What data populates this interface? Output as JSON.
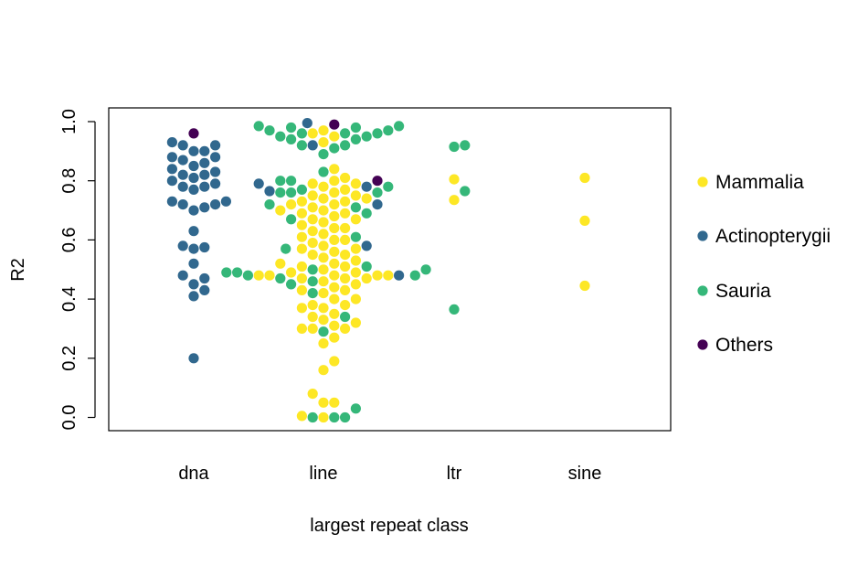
{
  "chart_data": {
    "type": "scatter",
    "subtype": "beeswarm",
    "xlabel": "largest repeat class",
    "ylabel": "R2",
    "categories": [
      "dna",
      "line",
      "ltr",
      "sine"
    ],
    "ylim": [
      -0.05,
      1.05
    ],
    "yticks": [
      "0.0",
      "0.2",
      "0.4",
      "0.6",
      "0.8",
      "1.0"
    ],
    "grid": false,
    "legend_position": "right",
    "series": [
      {
        "name": "Mammalia",
        "color": "#FDE725",
        "points": [
          {
            "x": "line",
            "y": 0.0
          },
          {
            "x": "line",
            "y": 0.005
          },
          {
            "x": "line",
            "y": 0.05
          },
          {
            "x": "line",
            "y": 0.05
          },
          {
            "x": "line",
            "y": 0.08
          },
          {
            "x": "line",
            "y": 0.16
          },
          {
            "x": "line",
            "y": 0.19
          },
          {
            "x": "line",
            "y": 0.25
          },
          {
            "x": "line",
            "y": 0.27
          },
          {
            "x": "line",
            "y": 0.3
          },
          {
            "x": "line",
            "y": 0.3
          },
          {
            "x": "line",
            "y": 0.3
          },
          {
            "x": "line",
            "y": 0.31
          },
          {
            "x": "line",
            "y": 0.32
          },
          {
            "x": "line",
            "y": 0.33
          },
          {
            "x": "line",
            "y": 0.34
          },
          {
            "x": "line",
            "y": 0.35
          },
          {
            "x": "line",
            "y": 0.37
          },
          {
            "x": "line",
            "y": 0.37
          },
          {
            "x": "line",
            "y": 0.38
          },
          {
            "x": "line",
            "y": 0.38
          },
          {
            "x": "line",
            "y": 0.4
          },
          {
            "x": "line",
            "y": 0.4
          },
          {
            "x": "line",
            "y": 0.42
          },
          {
            "x": "line",
            "y": 0.43
          },
          {
            "x": "line",
            "y": 0.43
          },
          {
            "x": "line",
            "y": 0.44
          },
          {
            "x": "line",
            "y": 0.45
          },
          {
            "x": "line",
            "y": 0.46
          },
          {
            "x": "line",
            "y": 0.47
          },
          {
            "x": "line",
            "y": 0.47
          },
          {
            "x": "line",
            "y": 0.47
          },
          {
            "x": "line",
            "y": 0.48
          },
          {
            "x": "line",
            "y": 0.48
          },
          {
            "x": "line",
            "y": 0.48
          },
          {
            "x": "line",
            "y": 0.48
          },
          {
            "x": "line",
            "y": 0.48
          },
          {
            "x": "line",
            "y": 0.49
          },
          {
            "x": "line",
            "y": 0.49
          },
          {
            "x": "line",
            "y": 0.5
          },
          {
            "x": "line",
            "y": 0.51
          },
          {
            "x": "line",
            "y": 0.51
          },
          {
            "x": "line",
            "y": 0.52
          },
          {
            "x": "line",
            "y": 0.52
          },
          {
            "x": "line",
            "y": 0.53
          },
          {
            "x": "line",
            "y": 0.54
          },
          {
            "x": "line",
            "y": 0.55
          },
          {
            "x": "line",
            "y": 0.55
          },
          {
            "x": "line",
            "y": 0.56
          },
          {
            "x": "line",
            "y": 0.57
          },
          {
            "x": "line",
            "y": 0.57
          },
          {
            "x": "line",
            "y": 0.58
          },
          {
            "x": "line",
            "y": 0.59
          },
          {
            "x": "line",
            "y": 0.6
          },
          {
            "x": "line",
            "y": 0.6
          },
          {
            "x": "line",
            "y": 0.61
          },
          {
            "x": "line",
            "y": 0.62
          },
          {
            "x": "line",
            "y": 0.63
          },
          {
            "x": "line",
            "y": 0.64
          },
          {
            "x": "line",
            "y": 0.64
          },
          {
            "x": "line",
            "y": 0.65
          },
          {
            "x": "line",
            "y": 0.66
          },
          {
            "x": "line",
            "y": 0.67
          },
          {
            "x": "line",
            "y": 0.67
          },
          {
            "x": "line",
            "y": 0.68
          },
          {
            "x": "line",
            "y": 0.69
          },
          {
            "x": "line",
            "y": 0.69
          },
          {
            "x": "line",
            "y": 0.7
          },
          {
            "x": "line",
            "y": 0.7
          },
          {
            "x": "line",
            "y": 0.71
          },
          {
            "x": "line",
            "y": 0.72
          },
          {
            "x": "line",
            "y": 0.72
          },
          {
            "x": "line",
            "y": 0.73
          },
          {
            "x": "line",
            "y": 0.73
          },
          {
            "x": "line",
            "y": 0.74
          },
          {
            "x": "line",
            "y": 0.74
          },
          {
            "x": "line",
            "y": 0.75
          },
          {
            "x": "line",
            "y": 0.75
          },
          {
            "x": "line",
            "y": 0.76
          },
          {
            "x": "line",
            "y": 0.77
          },
          {
            "x": "line",
            "y": 0.78
          },
          {
            "x": "line",
            "y": 0.79
          },
          {
            "x": "line",
            "y": 0.79
          },
          {
            "x": "line",
            "y": 0.8
          },
          {
            "x": "line",
            "y": 0.81
          },
          {
            "x": "line",
            "y": 0.84
          },
          {
            "x": "line",
            "y": 0.93
          },
          {
            "x": "line",
            "y": 0.95
          },
          {
            "x": "line",
            "y": 0.96
          },
          {
            "x": "line",
            "y": 0.97
          },
          {
            "x": "ltr",
            "y": 0.735
          },
          {
            "x": "ltr",
            "y": 0.805
          },
          {
            "x": "sine",
            "y": 0.445
          },
          {
            "x": "sine",
            "y": 0.665
          },
          {
            "x": "sine",
            "y": 0.81
          }
        ]
      },
      {
        "name": "Actinopterygii",
        "color": "#31688E",
        "points": [
          {
            "x": "dna",
            "y": 0.2
          },
          {
            "x": "dna",
            "y": 0.41
          },
          {
            "x": "dna",
            "y": 0.43
          },
          {
            "x": "dna",
            "y": 0.45
          },
          {
            "x": "dna",
            "y": 0.47
          },
          {
            "x": "dna",
            "y": 0.48
          },
          {
            "x": "dna",
            "y": 0.52
          },
          {
            "x": "dna",
            "y": 0.57
          },
          {
            "x": "dna",
            "y": 0.575
          },
          {
            "x": "dna",
            "y": 0.58
          },
          {
            "x": "dna",
            "y": 0.63
          },
          {
            "x": "dna",
            "y": 0.7
          },
          {
            "x": "dna",
            "y": 0.71
          },
          {
            "x": "dna",
            "y": 0.72
          },
          {
            "x": "dna",
            "y": 0.72
          },
          {
            "x": "dna",
            "y": 0.73
          },
          {
            "x": "dna",
            "y": 0.73
          },
          {
            "x": "dna",
            "y": 0.77
          },
          {
            "x": "dna",
            "y": 0.78
          },
          {
            "x": "dna",
            "y": 0.78
          },
          {
            "x": "dna",
            "y": 0.79
          },
          {
            "x": "dna",
            "y": 0.8
          },
          {
            "x": "dna",
            "y": 0.81
          },
          {
            "x": "dna",
            "y": 0.82
          },
          {
            "x": "dna",
            "y": 0.82
          },
          {
            "x": "dna",
            "y": 0.83
          },
          {
            "x": "dna",
            "y": 0.84
          },
          {
            "x": "dna",
            "y": 0.85
          },
          {
            "x": "dna",
            "y": 0.86
          },
          {
            "x": "dna",
            "y": 0.87
          },
          {
            "x": "dna",
            "y": 0.88
          },
          {
            "x": "dna",
            "y": 0.88
          },
          {
            "x": "dna",
            "y": 0.9
          },
          {
            "x": "dna",
            "y": 0.9
          },
          {
            "x": "dna",
            "y": 0.92
          },
          {
            "x": "dna",
            "y": 0.92
          },
          {
            "x": "dna",
            "y": 0.93
          },
          {
            "x": "line",
            "y": 0.48
          },
          {
            "x": "line",
            "y": 0.58
          },
          {
            "x": "line",
            "y": 0.72
          },
          {
            "x": "line",
            "y": 0.765
          },
          {
            "x": "line",
            "y": 0.78
          },
          {
            "x": "line",
            "y": 0.79
          },
          {
            "x": "line",
            "y": 0.92
          },
          {
            "x": "line",
            "y": 0.995
          }
        ]
      },
      {
        "name": "Sauria",
        "color": "#35B779",
        "points": [
          {
            "x": "line",
            "y": 0.0
          },
          {
            "x": "line",
            "y": 0.0
          },
          {
            "x": "line",
            "y": 0.0
          },
          {
            "x": "line",
            "y": 0.03
          },
          {
            "x": "line",
            "y": 0.29
          },
          {
            "x": "line",
            "y": 0.34
          },
          {
            "x": "line",
            "y": 0.42
          },
          {
            "x": "line",
            "y": 0.45
          },
          {
            "x": "line",
            "y": 0.46
          },
          {
            "x": "line",
            "y": 0.47
          },
          {
            "x": "line",
            "y": 0.48
          },
          {
            "x": "line",
            "y": 0.48
          },
          {
            "x": "line",
            "y": 0.49
          },
          {
            "x": "line",
            "y": 0.49
          },
          {
            "x": "line",
            "y": 0.5
          },
          {
            "x": "line",
            "y": 0.5
          },
          {
            "x": "line",
            "y": 0.51
          },
          {
            "x": "line",
            "y": 0.57
          },
          {
            "x": "line",
            "y": 0.61
          },
          {
            "x": "line",
            "y": 0.67
          },
          {
            "x": "line",
            "y": 0.69
          },
          {
            "x": "line",
            "y": 0.71
          },
          {
            "x": "line",
            "y": 0.72
          },
          {
            "x": "line",
            "y": 0.76
          },
          {
            "x": "line",
            "y": 0.76
          },
          {
            "x": "line",
            "y": 0.76
          },
          {
            "x": "line",
            "y": 0.77
          },
          {
            "x": "line",
            "y": 0.78
          },
          {
            "x": "line",
            "y": 0.8
          },
          {
            "x": "line",
            "y": 0.8
          },
          {
            "x": "line",
            "y": 0.83
          },
          {
            "x": "line",
            "y": 0.89
          },
          {
            "x": "line",
            "y": 0.91
          },
          {
            "x": "line",
            "y": 0.92
          },
          {
            "x": "line",
            "y": 0.92
          },
          {
            "x": "line",
            "y": 0.94
          },
          {
            "x": "line",
            "y": 0.94
          },
          {
            "x": "line",
            "y": 0.95
          },
          {
            "x": "line",
            "y": 0.95
          },
          {
            "x": "line",
            "y": 0.96
          },
          {
            "x": "line",
            "y": 0.96
          },
          {
            "x": "line",
            "y": 0.96
          },
          {
            "x": "line",
            "y": 0.97
          },
          {
            "x": "line",
            "y": 0.97
          },
          {
            "x": "line",
            "y": 0.98
          },
          {
            "x": "line",
            "y": 0.98
          },
          {
            "x": "line",
            "y": 0.985
          },
          {
            "x": "line",
            "y": 0.985
          },
          {
            "x": "ltr",
            "y": 0.365
          },
          {
            "x": "ltr",
            "y": 0.765
          },
          {
            "x": "ltr",
            "y": 0.915
          },
          {
            "x": "ltr",
            "y": 0.92
          }
        ]
      },
      {
        "name": "Others",
        "color": "#440154",
        "points": [
          {
            "x": "dna",
            "y": 0.96
          },
          {
            "x": "line",
            "y": 0.8
          },
          {
            "x": "line",
            "y": 0.99
          }
        ]
      }
    ]
  }
}
